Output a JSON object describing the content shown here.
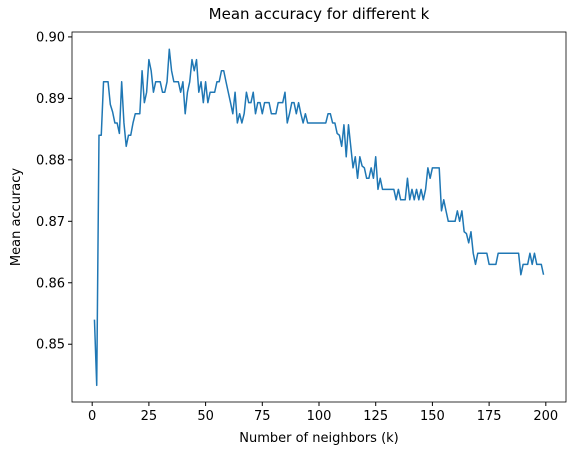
{
  "chart_data": {
    "type": "line",
    "title": "Mean accuracy for different k",
    "xlabel": "Number of neighbors (k)",
    "ylabel": "Mean accuracy",
    "x": [
      1,
      2,
      3,
      4,
      5,
      6,
      7,
      8,
      9,
      10,
      11,
      12,
      13,
      14,
      15,
      16,
      17,
      18,
      19,
      20,
      21,
      22,
      23,
      24,
      25,
      26,
      27,
      28,
      29,
      30,
      31,
      32,
      33,
      34,
      35,
      36,
      37,
      38,
      39,
      40,
      41,
      42,
      43,
      44,
      45,
      46,
      47,
      48,
      49,
      50,
      51,
      52,
      53,
      54,
      55,
      56,
      57,
      58,
      59,
      60,
      61,
      62,
      63,
      64,
      65,
      66,
      67,
      68,
      69,
      70,
      71,
      72,
      73,
      74,
      75,
      76,
      77,
      78,
      79,
      80,
      81,
      82,
      83,
      84,
      85,
      86,
      87,
      88,
      89,
      90,
      91,
      92,
      93,
      94,
      95,
      96,
      97,
      98,
      99,
      100,
      101,
      102,
      103,
      104,
      105,
      106,
      107,
      108,
      109,
      110,
      111,
      112,
      113,
      114,
      115,
      116,
      117,
      118,
      119,
      120,
      121,
      122,
      123,
      124,
      125,
      126,
      127,
      128,
      129,
      130,
      131,
      132,
      133,
      134,
      135,
      136,
      137,
      138,
      139,
      140,
      141,
      142,
      143,
      144,
      145,
      146,
      147,
      148,
      149,
      150,
      151,
      152,
      153,
      154,
      155,
      156,
      157,
      158,
      159,
      160,
      161,
      162,
      163,
      164,
      165,
      166,
      167,
      168,
      169,
      170,
      171,
      172,
      173,
      174,
      175,
      176,
      177,
      178,
      179,
      180,
      181,
      182,
      183,
      184,
      185,
      186,
      187,
      188,
      189,
      190,
      191,
      192,
      193,
      194,
      195,
      196,
      197,
      198,
      199
    ],
    "series": [
      {
        "name": "Mean accuracy",
        "color": "#1f77b4",
        "values": [
          0.854,
          0.8433,
          0.884,
          0.884,
          0.8927,
          0.8927,
          0.8927,
          0.889,
          0.8878,
          0.886,
          0.886,
          0.8843,
          0.8927,
          0.886,
          0.8822,
          0.884,
          0.884,
          0.886,
          0.8875,
          0.8875,
          0.8875,
          0.8945,
          0.8893,
          0.891,
          0.8963,
          0.8945,
          0.891,
          0.8927,
          0.8927,
          0.8927,
          0.891,
          0.891,
          0.8927,
          0.898,
          0.8945,
          0.8927,
          0.8927,
          0.8927,
          0.891,
          0.8927,
          0.8875,
          0.891,
          0.8927,
          0.8963,
          0.8945,
          0.8963,
          0.891,
          0.8927,
          0.8893,
          0.8927,
          0.8893,
          0.891,
          0.891,
          0.891,
          0.8927,
          0.8927,
          0.8945,
          0.8945,
          0.8927,
          0.891,
          0.8893,
          0.8875,
          0.891,
          0.886,
          0.8875,
          0.886,
          0.8875,
          0.891,
          0.8893,
          0.8893,
          0.891,
          0.8875,
          0.8893,
          0.8893,
          0.8875,
          0.8893,
          0.8893,
          0.8893,
          0.8875,
          0.8875,
          0.8875,
          0.8893,
          0.8893,
          0.8893,
          0.891,
          0.886,
          0.8875,
          0.8893,
          0.8893,
          0.8875,
          0.8893,
          0.8875,
          0.886,
          0.8875,
          0.886,
          0.886,
          0.886,
          0.886,
          0.886,
          0.886,
          0.886,
          0.886,
          0.886,
          0.8875,
          0.8875,
          0.886,
          0.886,
          0.8843,
          0.884,
          0.8822,
          0.8857,
          0.8805,
          0.8857,
          0.8822,
          0.8787,
          0.8805,
          0.877,
          0.8805,
          0.879,
          0.8787,
          0.877,
          0.877,
          0.8787,
          0.877,
          0.8805,
          0.8752,
          0.877,
          0.8752,
          0.8752,
          0.8752,
          0.8752,
          0.8752,
          0.8752,
          0.8735,
          0.8752,
          0.8735,
          0.8735,
          0.8735,
          0.877,
          0.8735,
          0.8752,
          0.8735,
          0.8752,
          0.8735,
          0.8752,
          0.8735,
          0.8752,
          0.8787,
          0.877,
          0.8787,
          0.8787,
          0.8787,
          0.8787,
          0.8717,
          0.8735,
          0.8717,
          0.87,
          0.87,
          0.87,
          0.87,
          0.8717,
          0.87,
          0.8717,
          0.8683,
          0.868,
          0.8665,
          0.8683,
          0.8648,
          0.863,
          0.8648,
          0.8648,
          0.8648,
          0.8648,
          0.8648,
          0.863,
          0.863,
          0.863,
          0.863,
          0.8648,
          0.8648,
          0.8648,
          0.8648,
          0.8648,
          0.8648,
          0.8648,
          0.8648,
          0.8648,
          0.8648,
          0.8613,
          0.863,
          0.863,
          0.863,
          0.8648,
          0.863,
          0.8648,
          0.863,
          0.863,
          0.863,
          0.8613
        ]
      }
    ],
    "xlim": [
      -8.9,
      208.9
    ],
    "xticks": [
      0,
      25,
      50,
      75,
      100,
      125,
      150,
      175,
      200
    ],
    "ylim": [
      0.8406,
      0.9008
    ],
    "yticks": [
      0.85,
      0.86,
      0.87,
      0.88,
      0.89,
      {
        "value": 0.9,
        "label": "0.90"
      }
    ],
    "grid": false
  }
}
